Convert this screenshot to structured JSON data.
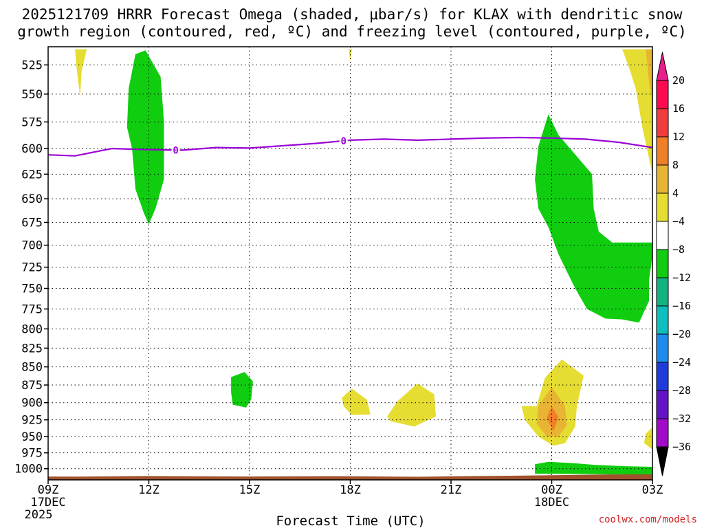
{
  "chart_data": {
    "type": "heatmap",
    "title_line1": "2025121709 HRRR Forecast Omega (shaded, μbar/s) for KLAX with dendritic snow",
    "title_line2": "growth region (contoured, red, ºC) and freezing level (contoured, purple, ºC)",
    "xlabel": "Forecast Time (UTC)",
    "credit": "coolwx.com/models",
    "x_hours": [
      0,
      3,
      6,
      9,
      12,
      15,
      18
    ],
    "x_ticks": [
      {
        "hour": 0,
        "label": "09Z",
        "sub1": "17DEC",
        "sub2": "2025"
      },
      {
        "hour": 3,
        "label": "12Z",
        "sub1": "",
        "sub2": ""
      },
      {
        "hour": 6,
        "label": "15Z",
        "sub1": "",
        "sub2": ""
      },
      {
        "hour": 9,
        "label": "18Z",
        "sub1": "",
        "sub2": ""
      },
      {
        "hour": 12,
        "label": "21Z",
        "sub1": "",
        "sub2": ""
      },
      {
        "hour": 15,
        "label": "00Z",
        "sub1": "18DEC",
        "sub2": ""
      },
      {
        "hour": 18,
        "label": "03Z",
        "sub1": "",
        "sub2": ""
      }
    ],
    "xlim": [
      0,
      18
    ],
    "ylim_hPa": [
      510,
      1018
    ],
    "y_ticks": [
      525,
      550,
      575,
      600,
      625,
      650,
      675,
      700,
      725,
      750,
      775,
      800,
      825,
      850,
      875,
      900,
      925,
      950,
      975,
      1000
    ],
    "grid": true,
    "colorbar": {
      "levels": [
        "20",
        "16",
        "12",
        "8",
        "4",
        "−4",
        "−8",
        "−12",
        "−16",
        "−20",
        "−24",
        "−28",
        "−32",
        "−36"
      ],
      "bin_colors": [
        "#ff0a50",
        "#f03c3c",
        "#f07f28",
        "#e8b433",
        "#e6dd32",
        "#ffffff",
        "#10cd10",
        "#14b482",
        "#0fbebe",
        "#1e8ced",
        "#1e3cdc",
        "#6414c8",
        "#a00ac8",
        "#a0a0a0"
      ],
      "top_color": "#e81e8c",
      "bottom_color": "#000000"
    },
    "freezing_level": {
      "label": "0",
      "color": "#9b00d6",
      "points": [
        [
          0,
          606
        ],
        [
          0.8,
          607
        ],
        [
          1.9,
          600
        ],
        [
          3,
          601
        ],
        [
          4,
          601.5
        ],
        [
          5,
          599
        ],
        [
          6,
          599.5
        ],
        [
          8,
          595
        ],
        [
          9,
          592
        ],
        [
          10,
          591
        ],
        [
          11,
          592
        ],
        [
          12,
          591
        ],
        [
          13,
          590
        ],
        [
          14,
          589.5
        ],
        [
          15,
          590
        ],
        [
          16,
          591
        ],
        [
          17,
          594
        ],
        [
          18,
          599
        ]
      ],
      "label_hours": [
        3.8,
        8.8
      ]
    },
    "omega_regions": [
      {
        "name": "green-upper-left",
        "color": "#10cd10",
        "points": [
          [
            2.6,
            516
          ],
          [
            2.9,
            513
          ],
          [
            3.35,
            535
          ],
          [
            3.45,
            575
          ],
          [
            3.45,
            630
          ],
          [
            3.2,
            660
          ],
          [
            3.0,
            677
          ],
          [
            2.85,
            665
          ],
          [
            2.6,
            640
          ],
          [
            2.5,
            600
          ],
          [
            2.35,
            580
          ],
          [
            2.4,
            545
          ]
        ]
      },
      {
        "name": "green-mid",
        "color": "#10cd10",
        "points": [
          [
            5.45,
            864
          ],
          [
            5.85,
            857
          ],
          [
            6.1,
            870
          ],
          [
            6.05,
            895
          ],
          [
            5.9,
            907
          ],
          [
            5.5,
            903
          ],
          [
            5.45,
            885
          ]
        ]
      },
      {
        "name": "green-right-upper",
        "color": "#10cd10",
        "points": [
          [
            14.5,
            630
          ],
          [
            14.6,
            598
          ],
          [
            14.9,
            568
          ],
          [
            15.2,
            587
          ],
          [
            16.2,
            625
          ],
          [
            16.25,
            660
          ],
          [
            16.4,
            685
          ],
          [
            16.8,
            697
          ],
          [
            18,
            697
          ],
          [
            18,
            712
          ],
          [
            17.9,
            740
          ],
          [
            17.9,
            765
          ],
          [
            17.6,
            792
          ],
          [
            17.1,
            788
          ],
          [
            16.6,
            787
          ],
          [
            16.05,
            775
          ],
          [
            15.7,
            750
          ],
          [
            15.45,
            730
          ],
          [
            15.2,
            710
          ],
          [
            14.9,
            680
          ],
          [
            14.6,
            660
          ]
        ]
      },
      {
        "name": "green-bottom-right",
        "color": "#10cd10",
        "points": [
          [
            14.5,
            993
          ],
          [
            14.9,
            989
          ],
          [
            15.6,
            991
          ],
          [
            16.3,
            994
          ],
          [
            17.2,
            996
          ],
          [
            18,
            997
          ],
          [
            18,
            1010
          ],
          [
            15,
            1008
          ],
          [
            14.5,
            1008
          ]
        ]
      },
      {
        "name": "yellow-top-left",
        "color": "#e6dd32",
        "points": [
          [
            0.8,
            512
          ],
          [
            1.15,
            512
          ],
          [
            1.0,
            530
          ],
          [
            0.95,
            552
          ],
          [
            0.85,
            528
          ]
        ]
      },
      {
        "name": "yellow-top-mid",
        "color": "#e6dd32",
        "points": [
          [
            8.95,
            512
          ],
          [
            9.05,
            512
          ],
          [
            9.0,
            522
          ]
        ]
      },
      {
        "name": "yellow-top-right",
        "color": "#e6dd32",
        "points": [
          [
            17.1,
            512
          ],
          [
            18,
            512
          ],
          [
            18,
            625
          ],
          [
            17.7,
            580
          ],
          [
            17.5,
            545
          ],
          [
            17.3,
            527
          ]
        ]
      },
      {
        "name": "orange-top-right",
        "color": "#e8b433",
        "points": [
          [
            17.8,
            512
          ],
          [
            18,
            512
          ],
          [
            18,
            557
          ],
          [
            17.9,
            540
          ],
          [
            17.85,
            525
          ]
        ]
      },
      {
        "name": "yellow-mid-1",
        "color": "#e6dd32",
        "points": [
          [
            8.75,
            893
          ],
          [
            9.05,
            880
          ],
          [
            9.5,
            896
          ],
          [
            9.6,
            917
          ],
          [
            9.05,
            918
          ],
          [
            8.8,
            905
          ]
        ]
      },
      {
        "name": "yellow-mid-2",
        "color": "#e6dd32",
        "points": [
          [
            10.1,
            920
          ],
          [
            10.4,
            898
          ],
          [
            11.0,
            873
          ],
          [
            11.5,
            888
          ],
          [
            11.55,
            920
          ],
          [
            10.9,
            935
          ],
          [
            10.2,
            927
          ]
        ]
      },
      {
        "name": "yellow-right-cell",
        "color": "#e6dd32",
        "points": [
          [
            14.55,
            905
          ],
          [
            14.8,
            865
          ],
          [
            15.3,
            840
          ],
          [
            15.95,
            862
          ],
          [
            15.75,
            905
          ],
          [
            15.7,
            935
          ],
          [
            15.4,
            960
          ],
          [
            15.05,
            964
          ],
          [
            14.6,
            950
          ],
          [
            14.2,
            925
          ],
          [
            14.1,
            905
          ]
        ]
      },
      {
        "name": "orange-right-cell",
        "color": "#e8b433",
        "points": [
          [
            14.6,
            905
          ],
          [
            15.0,
            878
          ],
          [
            15.4,
            905
          ],
          [
            15.45,
            933
          ],
          [
            15.2,
            950
          ],
          [
            14.85,
            950
          ],
          [
            14.55,
            930
          ]
        ]
      },
      {
        "name": "red-orange-core",
        "color": "#f07f28",
        "points": [
          [
            15.0,
            905
          ],
          [
            15.2,
            921
          ],
          [
            15.05,
            942
          ],
          [
            14.85,
            922
          ]
        ]
      },
      {
        "name": "yellow-far-right",
        "color": "#e6dd32",
        "points": [
          [
            17.8,
            946
          ],
          [
            18,
            936
          ],
          [
            18,
            970
          ],
          [
            17.75,
            960
          ]
        ]
      }
    ],
    "terrain": {
      "color": "#a0522d",
      "points": [
        [
          0,
          1012.5
        ],
        [
          0.8,
          1012.8
        ],
        [
          3,
          1011.8
        ],
        [
          6,
          1012.5
        ],
        [
          8.5,
          1012
        ],
        [
          11,
          1013
        ],
        [
          12,
          1012.2
        ],
        [
          14,
          1011.2
        ],
        [
          15,
          1010.5
        ],
        [
          16.5,
          1009.3
        ],
        [
          17.5,
          1009.1
        ],
        [
          18,
          1009
        ]
      ]
    }
  }
}
